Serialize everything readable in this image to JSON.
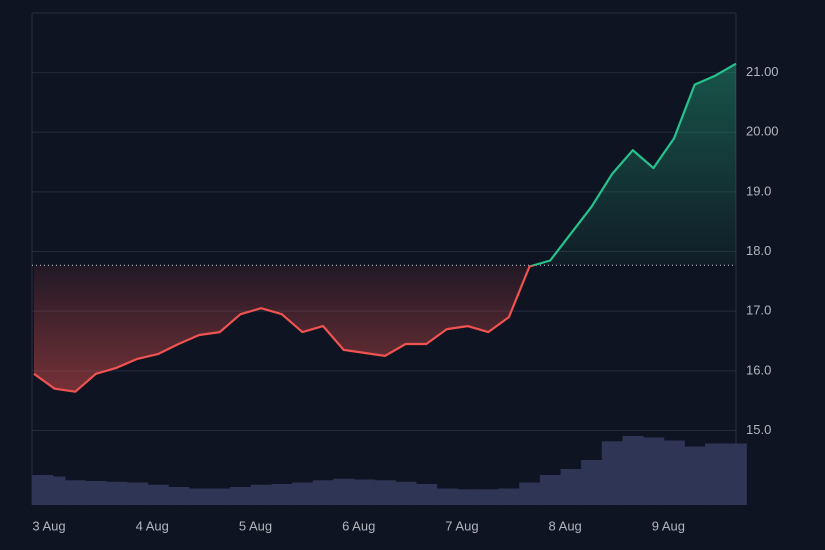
{
  "chart_data": {
    "type": "baseline-area",
    "categories": [
      "3 Aug",
      null,
      null,
      null,
      null,
      "4 Aug",
      null,
      null,
      null,
      null,
      "5 Aug",
      null,
      null,
      null,
      null,
      "6 Aug",
      null,
      null,
      null,
      null,
      "7 Aug",
      null,
      null,
      null,
      null,
      "8 Aug",
      null,
      null,
      null,
      null,
      "9 Aug",
      null,
      null,
      null,
      null
    ],
    "values": [
      15.95,
      15.7,
      15.65,
      15.95,
      16.05,
      16.2,
      16.28,
      16.45,
      16.6,
      16.65,
      16.95,
      17.05,
      16.95,
      16.65,
      16.75,
      16.35,
      16.3,
      16.25,
      16.45,
      16.45,
      16.7,
      16.75,
      16.65,
      16.9,
      17.75,
      17.85,
      18.3,
      18.75,
      19.3,
      19.7,
      19.4,
      19.9,
      20.8,
      20.95,
      21.15
    ],
    "baseline": 17.77,
    "up_color": "#26c28c",
    "down_color": "#ef5350",
    "volume": {
      "color": "#2f3555",
      "values": [
        40,
        38,
        33,
        32,
        31,
        30,
        27,
        24,
        22,
        22,
        24,
        27,
        28,
        30,
        33,
        35,
        34,
        33,
        31,
        28,
        22,
        21,
        21,
        22,
        30,
        40,
        48,
        60,
        85,
        92,
        90,
        86,
        78,
        82,
        82
      ]
    },
    "ylim": [
      13.75,
      22.0
    ],
    "yticks": [
      {
        "value": 15,
        "label": "15.0"
      },
      {
        "value": 16,
        "label": "16.0"
      },
      {
        "value": 17,
        "label": "17.0"
      },
      {
        "value": 18,
        "label": "18.0"
      },
      {
        "value": 19,
        "label": "19.0"
      },
      {
        "value": 20,
        "label": "20.00"
      },
      {
        "value": 21,
        "label": "21.00"
      }
    ],
    "grid": true
  }
}
